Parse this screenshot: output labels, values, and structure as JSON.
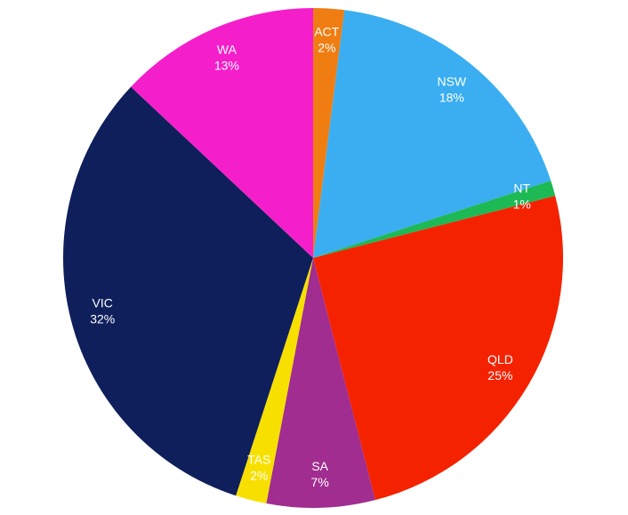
{
  "chart_data": {
    "type": "pie",
    "categories": [
      "ACT",
      "NSW",
      "NT",
      "QLD",
      "SA",
      "TAS",
      "VIC",
      "WA"
    ],
    "values": [
      2,
      18,
      1,
      25,
      7,
      2,
      32,
      13
    ],
    "value_labels": [
      "2%",
      "18%",
      "1%",
      "25%",
      "7%",
      "2%",
      "32%",
      "13%"
    ],
    "colors": [
      "#f07d12",
      "#3aaef0",
      "#1db954",
      "#f52200",
      "#a02d8f",
      "#f7e000",
      "#0e1f5b",
      "#f51ecb"
    ]
  }
}
